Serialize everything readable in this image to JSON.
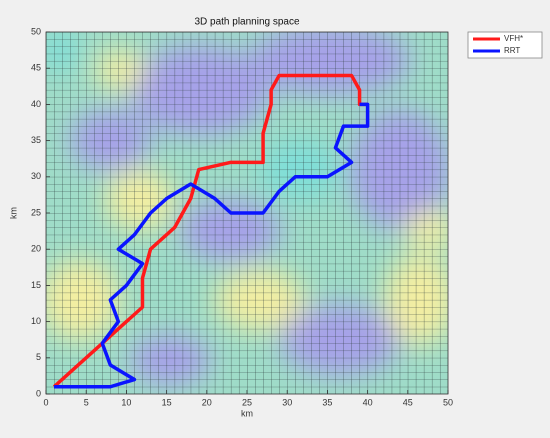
{
  "chart_data": {
    "type": "line",
    "title": "3D path planning space",
    "xlabel": "km",
    "ylabel": "km",
    "xlim": [
      0,
      50
    ],
    "ylim": [
      0,
      50
    ],
    "xticks": [
      0,
      5,
      10,
      15,
      20,
      25,
      30,
      35,
      40,
      45,
      50
    ],
    "yticks": [
      0,
      5,
      10,
      15,
      20,
      25,
      30,
      35,
      40,
      45,
      50
    ],
    "legend": "outside-top-right",
    "series": [
      {
        "name": "VFH*",
        "color": "#ff1a1a",
        "x": [
          1,
          12,
          12,
          13,
          16,
          18,
          19,
          23,
          27,
          27,
          28,
          28,
          29,
          38,
          39,
          39,
          40
        ],
        "values": [
          1,
          12,
          16,
          20,
          23,
          27,
          31,
          32,
          32,
          36,
          40,
          42,
          44,
          44,
          42,
          40,
          40
        ]
      },
      {
        "name": "RRT",
        "color": "#0a14ff",
        "x": [
          1,
          8,
          11,
          8,
          7,
          9,
          8,
          10,
          12,
          9,
          11,
          13,
          15,
          18,
          21,
          23,
          27,
          29,
          31,
          35,
          38,
          36,
          37,
          40,
          40,
          39
        ],
        "values": [
          1,
          1,
          2,
          4,
          7,
          10,
          13,
          15,
          18,
          20,
          22,
          25,
          27,
          29,
          27,
          25,
          25,
          28,
          30,
          30,
          32,
          34,
          37,
          37,
          40,
          40
        ]
      }
    ]
  }
}
